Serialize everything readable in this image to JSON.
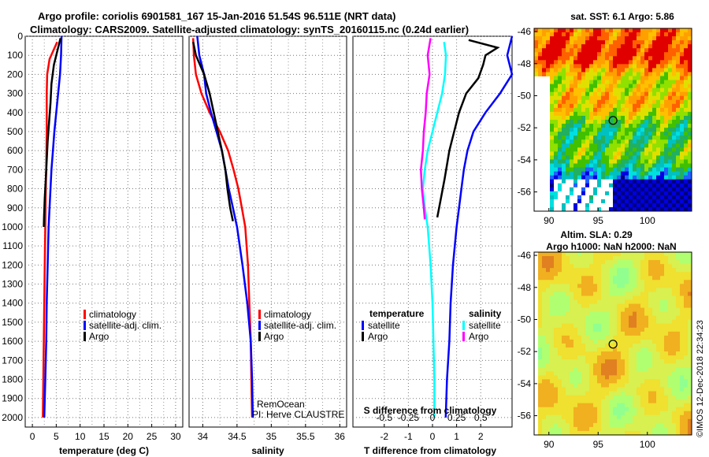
{
  "header": {
    "line1": "Argo profile: coriolis 6901581_167 15-Jan-2016 51.54S 96.511E (NRT data)",
    "line2": "Climatology: CARS2009. Satellite-adjusted climatology: synTS_20160115.nc (0.24d earlier)"
  },
  "colors": {
    "climatology": "#ff0000",
    "satellite": "#0000ff",
    "argo": "#000000",
    "satellite_salinity": "#00ffff",
    "argo_salinity": "#ff00ff"
  },
  "chart_data": [
    {
      "type": "line",
      "name": "temperature-panel",
      "xlabel": "temperature (deg C)",
      "xlim": [
        -1.5,
        31.5
      ],
      "ylim": [
        2050,
        0
      ],
      "xticks": [
        "0",
        "5",
        "10",
        "15",
        "20",
        "25",
        "30"
      ],
      "xtick_values": [
        0,
        5,
        10,
        15,
        20,
        25,
        30
      ],
      "yticks": [
        "0",
        "100",
        "200",
        "300",
        "400",
        "500",
        "600",
        "700",
        "800",
        "900",
        "1000",
        "1100",
        "1200",
        "1300",
        "1400",
        "1500",
        "1600",
        "1700",
        "1800",
        "1900",
        "2000"
      ],
      "ytick_values": [
        0,
        100,
        200,
        300,
        400,
        500,
        600,
        700,
        800,
        900,
        1000,
        1100,
        1200,
        1300,
        1400,
        1500,
        1600,
        1700,
        1800,
        1900,
        2000
      ],
      "legend": [
        "climatology",
        "satellite-adj. clim.",
        "Argo"
      ],
      "series": [
        {
          "name": "climatology",
          "color": "#ff0000",
          "x": [
            5.2,
            4.3,
            3.6,
            3.1,
            3.0,
            3.0,
            3.0,
            2.95,
            2.9,
            2.8,
            2.7,
            2.6,
            2.5,
            2.4,
            2.3,
            2.2
          ],
          "depth": [
            30,
            80,
            120,
            200,
            300,
            400,
            500,
            600,
            700,
            800,
            1000,
            1200,
            1400,
            1600,
            1800,
            2000
          ]
        },
        {
          "name": "satellite-adj. clim.",
          "color": "#0000ff",
          "x": [
            6.1,
            6.0,
            5.8,
            5.4,
            5.0,
            4.6,
            4.3,
            4.0,
            3.8,
            3.6,
            3.4,
            3.2,
            3.0,
            2.9,
            2.7,
            2.5
          ],
          "depth": [
            0,
            100,
            200,
            300,
            400,
            500,
            600,
            700,
            800,
            900,
            1000,
            1200,
            1400,
            1600,
            1800,
            2000
          ]
        },
        {
          "name": "Argo",
          "color": "#000000",
          "x": [
            5.9,
            5.4,
            4.5,
            4.0,
            3.8,
            3.5,
            3.2,
            3.0,
            2.8,
            2.6,
            2.45,
            2.4
          ],
          "depth": [
            10,
            60,
            150,
            250,
            350,
            450,
            550,
            650,
            750,
            850,
            950,
            1000
          ]
        }
      ]
    },
    {
      "type": "line",
      "name": "salinity-panel",
      "xlabel": "salinity",
      "xlim": [
        33.8,
        36.1
      ],
      "ylim": [
        2050,
        0
      ],
      "xticks": [
        "34",
        "34.5",
        "35",
        "35.5",
        "36"
      ],
      "xtick_values": [
        34,
        34.5,
        35,
        35.5,
        36
      ],
      "legend": [
        "climatology",
        "satellite-adj. clim.",
        "Argo"
      ],
      "annotation": [
        "RemOcean",
        "PI: Herve CLAUSTRE"
      ],
      "series": [
        {
          "name": "climatology",
          "color": "#ff0000",
          "x": [
            33.86,
            33.87,
            33.9,
            33.98,
            34.1,
            34.25,
            34.37,
            34.45,
            34.52,
            34.57,
            34.62,
            34.66,
            34.68,
            34.7,
            34.71,
            34.72
          ],
          "depth": [
            10,
            100,
            200,
            300,
            400,
            500,
            600,
            700,
            800,
            900,
            1000,
            1200,
            1400,
            1600,
            1800,
            2000
          ]
        },
        {
          "name": "satellite-adj. clim.",
          "color": "#0000ff",
          "x": [
            33.92,
            33.95,
            34.02,
            34.05,
            34.12,
            34.2,
            34.28,
            34.33,
            34.38,
            34.44,
            34.5,
            34.58,
            34.65,
            34.7,
            34.72,
            34.73
          ],
          "depth": [
            0,
            100,
            200,
            300,
            400,
            500,
            600,
            700,
            800,
            900,
            1000,
            1200,
            1400,
            1600,
            1800,
            2000
          ]
        },
        {
          "name": "Argo",
          "color": "#000000",
          "x": [
            33.86,
            33.9,
            34.02,
            34.1,
            34.16,
            34.22,
            34.28,
            34.33,
            34.36,
            34.4,
            34.44
          ],
          "depth": [
            30,
            100,
            200,
            300,
            400,
            500,
            600,
            700,
            800,
            900,
            970
          ]
        }
      ]
    },
    {
      "type": "line",
      "name": "difference-panel",
      "xlabel": "T difference from climatology",
      "x2label": "S difference from climatology",
      "xlim": [
        -3.3,
        3.3
      ],
      "ylim": [
        2050,
        0
      ],
      "xticks": [
        "-2",
        "-1",
        "0",
        "1",
        "2"
      ],
      "xtick_values": [
        -2,
        -1,
        0,
        1,
        2
      ],
      "x2ticks": [
        "-0.5",
        "-0.25",
        "0",
        "0.25",
        "0.5"
      ],
      "x2tick_values": [
        -0.5,
        -0.25,
        0,
        0.25,
        0.5
      ],
      "legend_temperature_title": "temperature",
      "legend_salinity_title": "salinity",
      "legend_temperature": [
        "satellite",
        "Argo"
      ],
      "legend_salinity": [
        "satellite",
        "Argo"
      ],
      "series": [
        {
          "name": "T satellite",
          "color": "#0000ff",
          "x": [
            3.5,
            3.1,
            3.3,
            2.8,
            2.2,
            1.7,
            1.45,
            1.3,
            1.2,
            1.1,
            1.0,
            0.85,
            0.75,
            0.7,
            0.6,
            0.55
          ],
          "depth": [
            0,
            100,
            200,
            300,
            400,
            500,
            600,
            700,
            800,
            900,
            1000,
            1200,
            1400,
            1600,
            1800,
            2000
          ]
        },
        {
          "name": "T Argo",
          "color": "#000000",
          "x": [
            1.5,
            2.7,
            2.2,
            2.1,
            1.9,
            1.4,
            1.1,
            0.9,
            0.7,
            0.5,
            0.2
          ],
          "depth": [
            20,
            60,
            100,
            150,
            220,
            300,
            400,
            500,
            600,
            750,
            950
          ]
        },
        {
          "name": "S satellite",
          "color": "#00ffff",
          "x": [
            0.12,
            0.14,
            0.13,
            0.1,
            0.05,
            0.0,
            -0.05,
            -0.08,
            -0.1,
            -0.08,
            -0.05,
            -0.02,
            0.0,
            0.01,
            0.02,
            0.02
          ],
          "depth": [
            30,
            100,
            200,
            300,
            400,
            500,
            600,
            700,
            800,
            900,
            1000,
            1200,
            1400,
            1600,
            1800,
            2000
          ]
        },
        {
          "name": "S Argo",
          "color": "#ff00ff",
          "x": [
            -0.02,
            -0.05,
            -0.03,
            -0.06,
            -0.07,
            -0.09,
            -0.1,
            -0.12,
            -0.11,
            -0.09,
            -0.08
          ],
          "depth": [
            10,
            100,
            200,
            300,
            400,
            500,
            600,
            700,
            800,
            900,
            960
          ]
        }
      ]
    },
    {
      "type": "heatmap",
      "name": "sst-map",
      "title": "sat. SST: 6.1 Argo: 5.86",
      "xticks": [
        "90",
        "95",
        "100"
      ],
      "xtick_values": [
        90,
        95,
        100
      ],
      "yticks": [
        "-46",
        "-48",
        "-50",
        "-52",
        "-54",
        "-56"
      ],
      "ytick_values": [
        -46,
        -48,
        -50,
        -52,
        -54,
        -56
      ],
      "xlim": [
        88.5,
        104.5
      ],
      "ylim": [
        -57.2,
        -45.8
      ],
      "marker": {
        "lon": 96.511,
        "lat": -51.54
      }
    },
    {
      "type": "heatmap",
      "name": "sla-map",
      "title": "Altim. SLA: 0.29",
      "subtitle": "Argo h1000: NaN h2000: NaN",
      "xticks": [
        "90",
        "95",
        "100"
      ],
      "xtick_values": [
        90,
        95,
        100
      ],
      "yticks": [
        "-46",
        "-48",
        "-50",
        "-52",
        "-54",
        "-56"
      ],
      "ytick_values": [
        -46,
        -48,
        -50,
        -52,
        -54,
        -56
      ],
      "xlim": [
        88.5,
        104.5
      ],
      "ylim": [
        -57.2,
        -45.8
      ],
      "marker": {
        "lon": 96.511,
        "lat": -51.54
      }
    }
  ],
  "footer": {
    "credit": "©IMOS 12-Dec-2018 22:34:23"
  }
}
